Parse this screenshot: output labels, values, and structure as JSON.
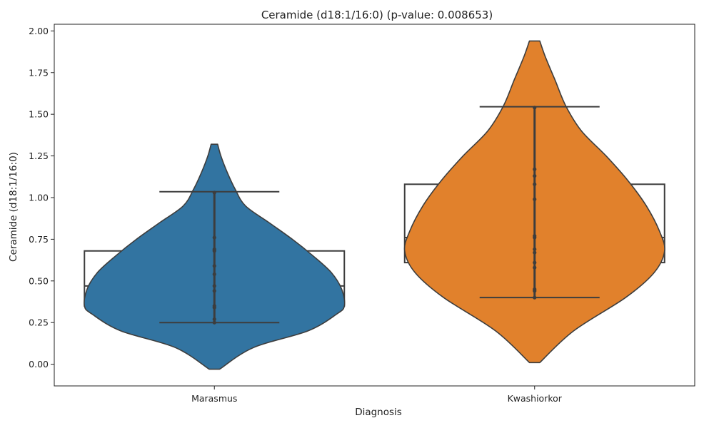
{
  "chart_data": {
    "type": "violin",
    "title": "Ceramide (d18:1/16:0) (p-value: 0.008653)",
    "xlabel": "Diagnosis",
    "ylabel": "Ceramide (d18:1/16:0)",
    "ylim": [
      -0.13,
      2.04
    ],
    "yticks": [
      0.0,
      0.25,
      0.5,
      0.75,
      1.0,
      1.25,
      1.5,
      1.75,
      2.0
    ],
    "ytick_labels": [
      "0.00",
      "0.25",
      "0.50",
      "0.75",
      "1.00",
      "1.25",
      "1.50",
      "1.75",
      "2.00"
    ],
    "categories": [
      "Marasmus",
      "Kwashiorkor"
    ],
    "groups": [
      {
        "name": "Marasmus",
        "color": "#3274a1",
        "points": [
          0.25,
          0.27,
          0.34,
          0.35,
          0.44,
          0.47,
          0.54,
          0.59,
          0.68,
          0.69,
          0.76,
          1.03
        ],
        "box": {
          "q1": 0.35,
          "median": 0.47,
          "q3": 0.68,
          "whisker_low": 0.25,
          "whisker_high": 1.035
        },
        "density_range": [
          -0.03,
          1.32
        ],
        "density_profile": [
          [
            -0.03,
            0.04
          ],
          [
            0.1,
            0.3
          ],
          [
            0.2,
            0.72
          ],
          [
            0.3,
            0.94
          ],
          [
            0.35,
            1.0
          ],
          [
            0.45,
            0.98
          ],
          [
            0.55,
            0.9
          ],
          [
            0.65,
            0.76
          ],
          [
            0.75,
            0.6
          ],
          [
            0.85,
            0.42
          ],
          [
            0.95,
            0.24
          ],
          [
            1.05,
            0.16
          ],
          [
            1.15,
            0.1
          ],
          [
            1.25,
            0.05
          ],
          [
            1.32,
            0.025
          ]
        ]
      },
      {
        "name": "Kwashiorkor",
        "color": "#e1812c",
        "points": [
          0.4,
          0.44,
          0.45,
          0.58,
          0.61,
          0.67,
          0.69,
          0.76,
          0.77,
          0.99,
          1.08,
          1.13,
          1.17,
          1.54
        ],
        "box": {
          "q1": 0.61,
          "median": 0.76,
          "q3": 1.08,
          "whisker_low": 0.4,
          "whisker_high": 1.545
        },
        "density_range": [
          0.01,
          1.94
        ],
        "density_profile": [
          [
            0.01,
            0.04
          ],
          [
            0.2,
            0.3
          ],
          [
            0.4,
            0.7
          ],
          [
            0.55,
            0.92
          ],
          [
            0.68,
            1.0
          ],
          [
            0.8,
            0.96
          ],
          [
            0.95,
            0.86
          ],
          [
            1.1,
            0.72
          ],
          [
            1.25,
            0.55
          ],
          [
            1.4,
            0.36
          ],
          [
            1.55,
            0.24
          ],
          [
            1.7,
            0.16
          ],
          [
            1.85,
            0.08
          ],
          [
            1.94,
            0.04
          ]
        ]
      }
    ]
  }
}
